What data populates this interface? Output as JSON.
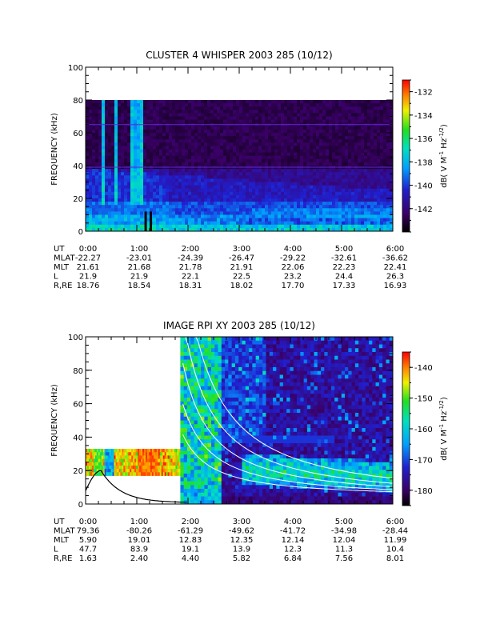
{
  "chart_data": [
    {
      "type": "heatmap",
      "title": "CLUSTER 4 WHISPER 2003 285 (10/12)",
      "ylabel": "FREQUENCY (kHz)",
      "ylim": [
        0,
        100
      ],
      "yticks": [
        "0",
        "20",
        "40",
        "60",
        "80",
        "100"
      ],
      "xticks": [
        "0:00",
        "1:00",
        "2:00",
        "3:00",
        "4:00",
        "5:00",
        "6:00"
      ],
      "xlim_hours": [
        0,
        6
      ],
      "colorbar": {
        "label": "dB( V M⁻¹ Hz⁻¹ᐟ²)",
        "label_parts": [
          "dB( V M",
          "-1",
          " Hz",
          "-1/2",
          ")"
        ],
        "range": [
          -144,
          -131
        ],
        "ticks": [
          "-132",
          "-134",
          "-136",
          "-138",
          "-140",
          "-142"
        ],
        "tick_values": [
          -132,
          -134,
          -136,
          -138,
          -140,
          -142
        ]
      },
      "ephemeris": {
        "labels": [
          "UT",
          "MLAT",
          "MLT",
          "L",
          "R,RE"
        ],
        "rows": [
          [
            "0:00",
            "1:00",
            "2:00",
            "3:00",
            "4:00",
            "5:00",
            "6:00"
          ],
          [
            "-22.27",
            "-23.01",
            "-24.39",
            "-26.47",
            "-29.22",
            "-32.61",
            "-36.62"
          ],
          [
            "21.61",
            "21.68",
            "21.78",
            "21.91",
            "22.06",
            "22.23",
            "22.41"
          ],
          [
            "21.9",
            "21.9",
            "22.1",
            "22.5",
            "23.2",
            "24.4",
            "26.3"
          ],
          [
            "18.76",
            "18.54",
            "18.31",
            "18.02",
            "17.70",
            "17.33",
            "16.93"
          ]
        ]
      },
      "data_coverage_khz": [
        0,
        80
      ],
      "horizontal_lines_khz": [
        65,
        39
      ],
      "emission_bursts_hours": [
        0.32,
        0.55,
        0.88,
        0.97,
        1.06
      ]
    },
    {
      "type": "heatmap",
      "title": "IMAGE RPI XY 2003 285 (10/12)",
      "ylabel": "FREQUENCY (kHz)",
      "ylim": [
        0,
        100
      ],
      "yticks": [
        "0",
        "20",
        "40",
        "60",
        "80",
        "100"
      ],
      "xticks": [
        "0:00",
        "1:00",
        "2:00",
        "3:00",
        "4:00",
        "5:00",
        "6:00"
      ],
      "xlim_hours": [
        0,
        6
      ],
      "colorbar": {
        "label": "dB( V M⁻¹ Hz⁻¹ᐟ²)",
        "label_parts": [
          "dB( V M",
          "-1",
          " Hz",
          "-1/2",
          ")"
        ],
        "range": [
          -185,
          -135
        ],
        "ticks": [
          "-140",
          "-150",
          "-160",
          "-170",
          "-180"
        ],
        "tick_values": [
          -140,
          -150,
          -160,
          -170,
          -180
        ]
      },
      "ephemeris": {
        "labels": [
          "UT",
          "MLAT",
          "MLT",
          "L",
          "R,RE"
        ],
        "rows": [
          [
            "0:00",
            "1:00",
            "2:00",
            "3:00",
            "4:00",
            "5:00",
            "6:00"
          ],
          [
            "79.36",
            "-80.26",
            "-61.29",
            "-49.62",
            "-41.72",
            "-34.98",
            "-28.44"
          ],
          [
            "5.90",
            "19.01",
            "12.83",
            "12.35",
            "12.14",
            "12.04",
            "11.99"
          ],
          [
            "47.7",
            "83.9",
            "19.1",
            "13.9",
            "12.3",
            "11.3",
            "10.4"
          ],
          [
            "1.63",
            "2.40",
            "4.40",
            "5.82",
            "6.84",
            "7.56",
            "8.01"
          ]
        ]
      },
      "low_band_coverage": {
        "hours": [
          0,
          1.85
        ],
        "khz": [
          17,
          33
        ]
      },
      "full_coverage": {
        "hours": [
          1.85,
          6
        ],
        "khz": [
          0,
          100
        ]
      },
      "black_curve_peak": {
        "hour": 0.3,
        "khz": 20
      }
    }
  ],
  "colors": {
    "background": "#000000",
    "deep": "#1a0033",
    "contour_lines": "#ffffff",
    "hline": "#5a2bd6"
  }
}
